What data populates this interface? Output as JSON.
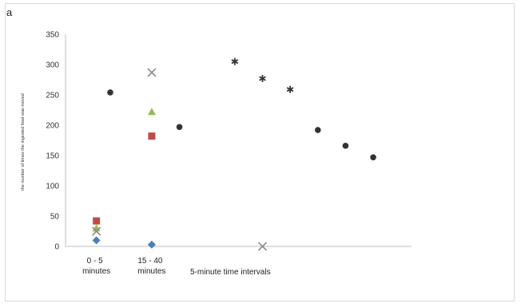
{
  "panel_label": "a",
  "chart_data": {
    "type": "scatter",
    "title": "",
    "ylabel": "the number of times the ingested food was moved",
    "xlabel": "5-minute time intervals",
    "ylim": [
      0,
      350
    ],
    "yticks": [
      0,
      50,
      100,
      150,
      200,
      250,
      300,
      350
    ],
    "x_category_labels": [
      {
        "line1": "0 - 5",
        "line2": "minutes",
        "x": 1.0
      },
      {
        "line1": "15 - 40",
        "line2": "minutes",
        "x": 3.0
      }
    ],
    "xlim": [
      0,
      12.5
    ],
    "grid": false,
    "series": [
      {
        "marker": "diamond",
        "color": "#4a7ebb",
        "points": [
          {
            "x": 1.0,
            "y": 10
          },
          {
            "x": 3.0,
            "y": 3
          }
        ]
      },
      {
        "marker": "square",
        "color": "#be4b48",
        "points": [
          {
            "x": 1.0,
            "y": 42
          },
          {
            "x": 3.0,
            "y": 182
          }
        ]
      },
      {
        "marker": "triangle",
        "color": "#98b954",
        "points": [
          {
            "x": 1.0,
            "y": 30
          },
          {
            "x": 3.0,
            "y": 222
          }
        ]
      },
      {
        "marker": "x",
        "color": "#8c8c8c",
        "points": [
          {
            "x": 1.0,
            "y": 25
          },
          {
            "x": 3.0,
            "y": 287
          },
          {
            "x": 7.0,
            "y": 0
          }
        ]
      },
      {
        "marker": "star",
        "color": "#333333",
        "points": [
          {
            "x": 6.0,
            "y": 305
          },
          {
            "x": 7.0,
            "y": 277
          },
          {
            "x": 8.0,
            "y": 259
          }
        ]
      },
      {
        "marker": "circle",
        "color": "#333333",
        "points": [
          {
            "x": 1.5,
            "y": 254
          },
          {
            "x": 4.0,
            "y": 197
          },
          {
            "x": 9.0,
            "y": 192
          },
          {
            "x": 10.0,
            "y": 166
          },
          {
            "x": 11.0,
            "y": 147
          }
        ]
      }
    ]
  }
}
